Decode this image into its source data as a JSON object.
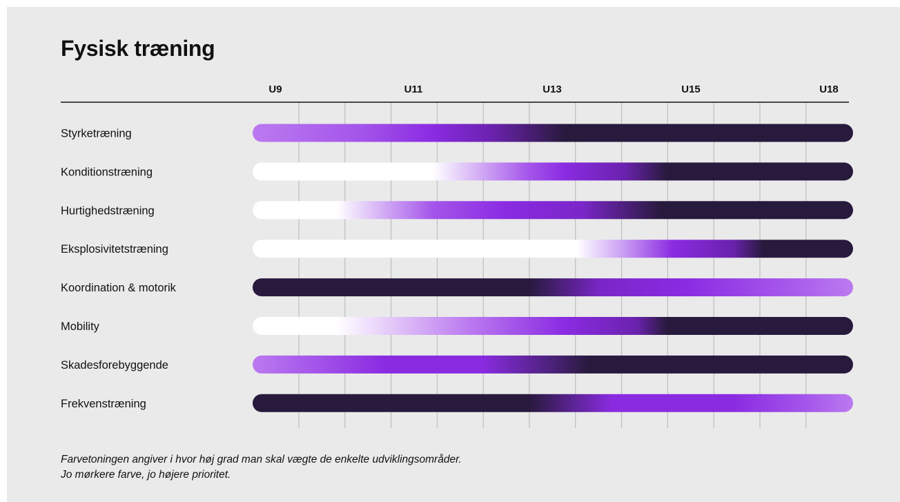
{
  "page_title": "Fysisk træning",
  "note": {
    "line1": "Farvetoningen angiver i hvor høj grad man skal vægte de enkelte udviklingsområder.",
    "line2": "Jo mørkere farve, jo højere prioritet."
  },
  "colors": {
    "background": "#eaeaea",
    "low": "#ffffff",
    "light_purple": "#bb7af0",
    "mid_purple": "#8a2be2",
    "dark": "#281a3d",
    "grid": "#b4b4b4",
    "axis_line": "#111111"
  },
  "chart_data": {
    "type": "heatmap",
    "title": "Fysisk træning",
    "x_ticks": [
      "U9",
      "U11",
      "U13",
      "U15",
      "U18"
    ],
    "x_range": [
      "U9",
      "U18"
    ],
    "grid": true,
    "legend": "",
    "color_scale": "white (low) → light purple → purple → dark purple (high priority)",
    "rows": [
      {
        "label": "Styrketræning",
        "stops": [
          [
            0,
            "#bb7af0"
          ],
          [
            0.18,
            "#a455ea"
          ],
          [
            0.3,
            "#8a2be2"
          ],
          [
            0.4,
            "#6a22ad"
          ],
          [
            0.52,
            "#281a3d"
          ],
          [
            1,
            "#281a3d"
          ]
        ]
      },
      {
        "label": "Konditionstræning",
        "stops": [
          [
            0,
            "#ffffff"
          ],
          [
            0.3,
            "#ffffff"
          ],
          [
            0.46,
            "#a455ea"
          ],
          [
            0.52,
            "#8a2be2"
          ],
          [
            0.62,
            "#6a22ad"
          ],
          [
            0.69,
            "#281a3d"
          ],
          [
            1,
            "#281a3d"
          ]
        ]
      },
      {
        "label": "Hurtighedstræning",
        "stops": [
          [
            0,
            "#ffffff"
          ],
          [
            0.14,
            "#ffffff"
          ],
          [
            0.3,
            "#a455ea"
          ],
          [
            0.42,
            "#8a2be2"
          ],
          [
            0.55,
            "#7a26c8"
          ],
          [
            0.68,
            "#281a3d"
          ],
          [
            1,
            "#281a3d"
          ]
        ]
      },
      {
        "label": "Eksplosivitetstræning",
        "stops": [
          [
            0,
            "#ffffff"
          ],
          [
            0.54,
            "#ffffff"
          ],
          [
            0.62,
            "#c79af2"
          ],
          [
            0.7,
            "#8a2be2"
          ],
          [
            0.8,
            "#6a22ad"
          ],
          [
            0.85,
            "#281a3d"
          ],
          [
            1,
            "#281a3d"
          ]
        ]
      },
      {
        "label": "Koordination & motorik",
        "stops": [
          [
            0,
            "#281a3d"
          ],
          [
            0.46,
            "#281a3d"
          ],
          [
            0.58,
            "#7a26c8"
          ],
          [
            0.72,
            "#8a2be2"
          ],
          [
            0.88,
            "#a455ea"
          ],
          [
            1,
            "#bb7af0"
          ]
        ]
      },
      {
        "label": "Mobility",
        "stops": [
          [
            0,
            "#ffffff"
          ],
          [
            0.14,
            "#ffffff"
          ],
          [
            0.36,
            "#bb7af0"
          ],
          [
            0.52,
            "#8a2be2"
          ],
          [
            0.64,
            "#6a22ad"
          ],
          [
            0.69,
            "#281a3d"
          ],
          [
            1,
            "#281a3d"
          ]
        ]
      },
      {
        "label": "Skadesforebyggende",
        "stops": [
          [
            0,
            "#bb7af0"
          ],
          [
            0.22,
            "#8a2be2"
          ],
          [
            0.38,
            "#8a2be2"
          ],
          [
            0.5,
            "#4a2278"
          ],
          [
            0.56,
            "#281a3d"
          ],
          [
            1,
            "#281a3d"
          ]
        ]
      },
      {
        "label": "Frekvenstræning",
        "stops": [
          [
            0,
            "#281a3d"
          ],
          [
            0.46,
            "#281a3d"
          ],
          [
            0.6,
            "#8a2be2"
          ],
          [
            0.8,
            "#8a2be2"
          ],
          [
            0.92,
            "#a455ea"
          ],
          [
            1,
            "#bb7af0"
          ]
        ]
      }
    ]
  }
}
